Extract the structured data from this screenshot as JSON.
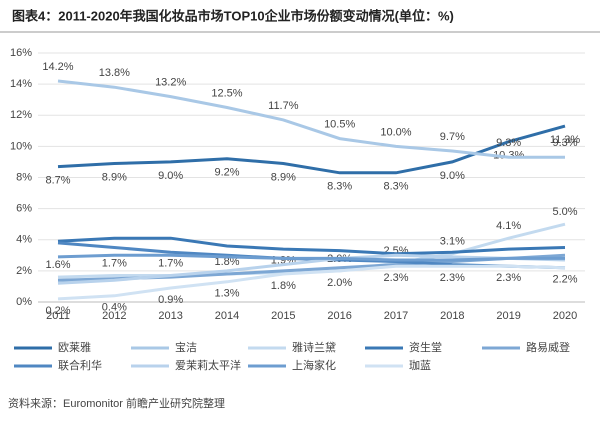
{
  "chart_data": {
    "type": "line",
    "title": "图表4：2011-2020年我国化妆品市场TOP10企业市场份额变动情况(单位：%)",
    "source": "资料来源：Euromonitor 前瞻产业研究院整理",
    "categories": [
      "2011",
      "2012",
      "2013",
      "2014",
      "2015",
      "2016",
      "2017",
      "2018",
      "2019",
      "2020"
    ],
    "ylim": [
      0,
      16
    ],
    "yticks": [
      {
        "value": 0,
        "label": "0%"
      },
      {
        "value": 2,
        "label": "2%"
      },
      {
        "value": 4,
        "label": "4%"
      },
      {
        "value": 6,
        "label": "6%"
      },
      {
        "value": 8,
        "label": "8%"
      },
      {
        "value": 10,
        "label": "10%"
      },
      {
        "value": 12,
        "label": "12%"
      },
      {
        "value": 14,
        "label": "14%"
      },
      {
        "value": 16,
        "label": "16%"
      }
    ],
    "grid": true,
    "series": [
      {
        "name": "欧莱雅",
        "color": "#2f6ea8",
        "values": [
          8.7,
          8.9,
          9.0,
          9.2,
          8.9,
          8.3,
          8.3,
          9.0,
          10.3,
          11.3
        ],
        "value_labels": [
          "8.7%",
          "8.9%",
          "9.0%",
          "9.2%",
          "8.9%",
          "8.3%",
          "8.3%",
          "9.0%",
          "10.3%",
          "11.3%"
        ]
      },
      {
        "name": "宝洁",
        "color": "#a9c8e6",
        "values": [
          14.2,
          13.8,
          13.2,
          12.5,
          11.7,
          10.5,
          10.0,
          9.7,
          9.3,
          9.3
        ],
        "value_labels": [
          "14.2%",
          "13.8%",
          "13.2%",
          "12.5%",
          "11.7%",
          "10.5%",
          "10.0%",
          "9.7%",
          "9.3%",
          "9.3%"
        ]
      },
      {
        "name": "雅诗兰黛",
        "color": "#c3daef",
        "values": [
          1.6,
          1.7,
          1.7,
          1.8,
          1.9,
          2.0,
          2.5,
          3.1,
          4.1,
          5.0
        ],
        "value_labels": [
          "1.6%",
          "1.7%",
          "1.7%",
          "1.8%",
          "1.9%",
          "2.0%",
          "2.5%",
          "3.1%",
          "4.1%",
          "5.0%"
        ]
      },
      {
        "name": "资生堂",
        "color": "#3a78b5",
        "values": [
          3.9,
          4.1,
          4.1,
          3.6,
          3.4,
          3.3,
          3.1,
          3.2,
          3.4,
          3.5
        ]
      },
      {
        "name": "路易威登",
        "color": "#7da7d4",
        "values": [
          1.4,
          1.5,
          1.6,
          1.8,
          2.0,
          2.2,
          2.4,
          2.6,
          2.8,
          3.0
        ]
      },
      {
        "name": "联合利华",
        "color": "#4f87c2",
        "values": [
          3.8,
          3.5,
          3.2,
          3.0,
          2.8,
          2.7,
          2.6,
          2.4,
          2.3,
          2.2
        ]
      },
      {
        "name": "爱茉莉太平洋",
        "color": "#b8d2ec",
        "values": [
          1.2,
          1.4,
          1.7,
          2.0,
          2.4,
          2.8,
          3.0,
          2.9,
          2.8,
          2.7
        ]
      },
      {
        "name": "上海家化",
        "color": "#6d9dd0",
        "values": [
          2.9,
          3.0,
          3.0,
          2.9,
          2.8,
          2.8,
          2.7,
          2.7,
          2.8,
          2.8
        ]
      },
      {
        "name": "珈蓝",
        "color": "#d0e2f3",
        "values": [
          0.2,
          0.4,
          0.9,
          1.3,
          1.8,
          2.0,
          2.3,
          2.3,
          2.3,
          2.2
        ],
        "value_labels": [
          "0.2%",
          "0.4%",
          "0.9%",
          "1.3%",
          "1.8%",
          "2.0%",
          "2.3%",
          "2.3%",
          "2.3%",
          "2.2%"
        ]
      }
    ]
  }
}
